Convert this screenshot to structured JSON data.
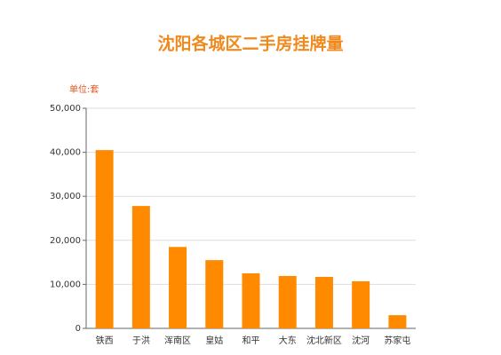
{
  "chart_data": {
    "type": "bar",
    "title": "沈阳各城区二手房挂牌量",
    "y_unit_label": "单位:套",
    "categories": [
      "铁西",
      "于洪",
      "浑南区",
      "皇姑",
      "和平",
      "大东",
      "沈北新区",
      "沈河",
      "苏家屯"
    ],
    "values": [
      40500,
      27800,
      18500,
      15500,
      12500,
      11900,
      11700,
      10700,
      3000
    ],
    "color": "#ff8a00",
    "ylim": [
      0,
      50000
    ],
    "yticks": [
      0,
      {
        "value": 10000,
        "label": "10,000"
      },
      {
        "value": 20000,
        "label": "20,000"
      },
      {
        "value": 30000,
        "label": "30,000"
      },
      {
        "value": 40000,
        "label": "40,000"
      },
      {
        "value": 50000,
        "label": "50,000"
      }
    ],
    "grid": true
  }
}
